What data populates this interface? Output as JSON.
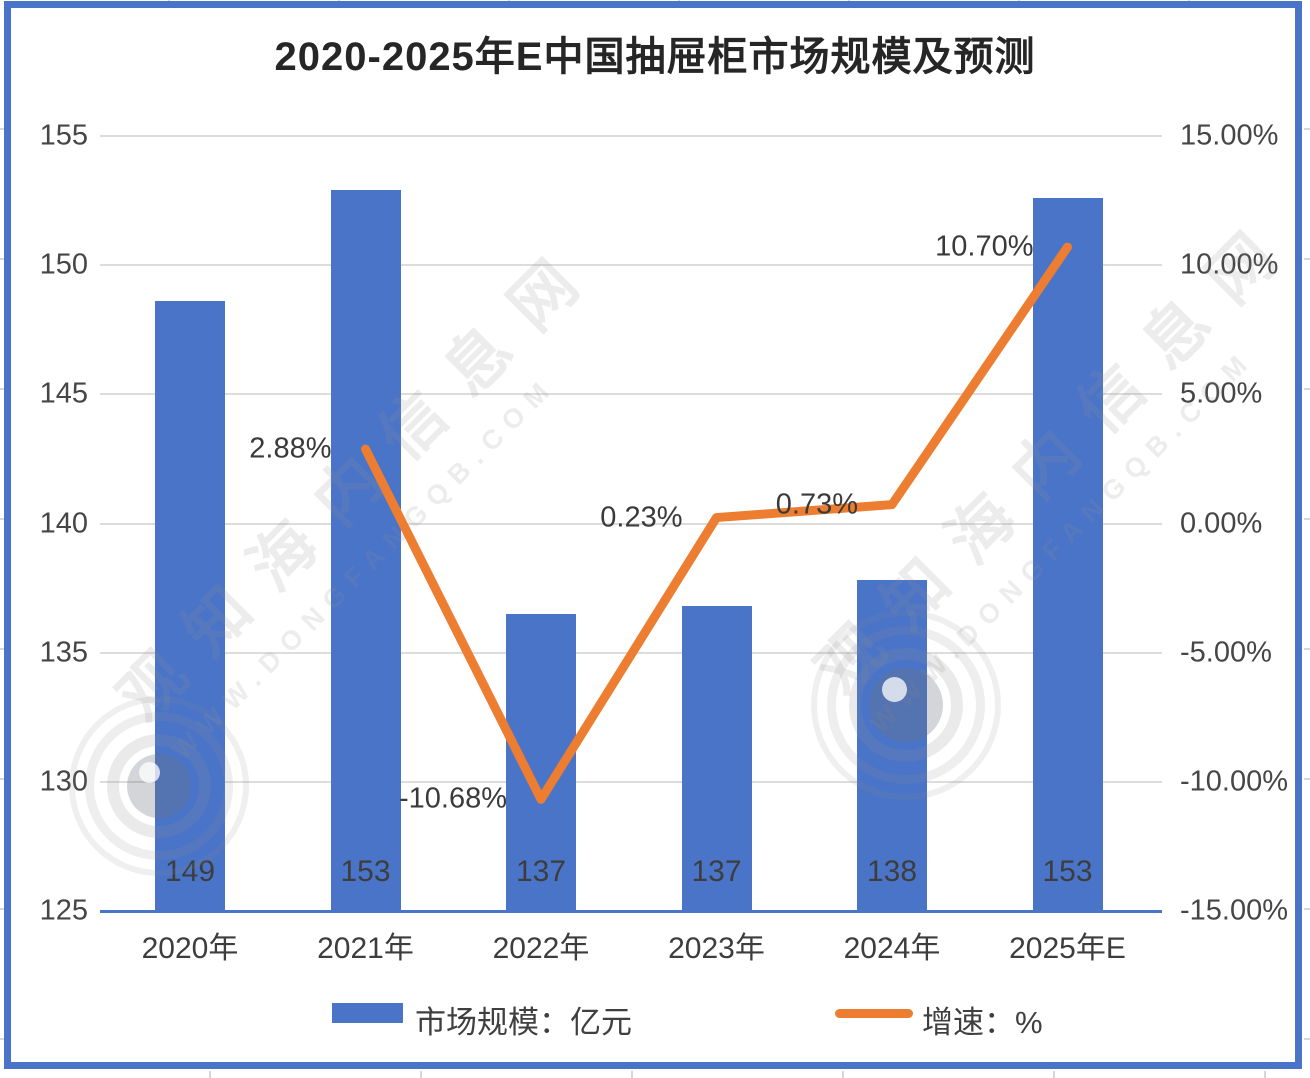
{
  "title": "2020-2025年E中国抽屉柜市场规模及预测",
  "watermark": {
    "brand": "观知海内信息网",
    "url": "WWW.DONGFANGQB.COM"
  },
  "chart_data": {
    "type": "bar+line",
    "title": "2020-2025年E中国抽屉柜市场规模及预测",
    "categories": [
      "2020年",
      "2021年",
      "2022年",
      "2023年",
      "2024年",
      "2025年E"
    ],
    "series": [
      {
        "name": "市场规模：亿元",
        "type": "bar",
        "axis": "left",
        "values": [
          149,
          153,
          137,
          137,
          138,
          153
        ],
        "values_precise": [
          148.6,
          152.9,
          136.5,
          136.8,
          137.8,
          152.6
        ],
        "labels": [
          "149",
          "153",
          "137",
          "137",
          "138",
          "153"
        ],
        "color": "#4A74C8"
      },
      {
        "name": "增速：%",
        "type": "line",
        "axis": "right",
        "start_index": 1,
        "values": [
          2.88,
          -10.68,
          0.23,
          0.73,
          10.7
        ],
        "labels": [
          "2.88%",
          "-10.68%",
          "0.23%",
          "0.73%",
          "10.70%"
        ],
        "color": "#ED7D31"
      }
    ],
    "left_axis": {
      "min": 125,
      "max": 155,
      "ticks": [
        "155",
        "150",
        "145",
        "140",
        "135",
        "130",
        "125"
      ]
    },
    "right_axis": {
      "min": -15,
      "max": 15,
      "ticks": [
        "15.00%",
        "10.00%",
        "5.00%",
        "0.00%",
        "-5.00%",
        "-10.00%",
        "-15.00%"
      ]
    },
    "grid": "horizontal",
    "legend_position": "bottom"
  },
  "colors": {
    "bar": "#4A74C8",
    "line": "#ED7D31",
    "frame": "#4A74C8",
    "gridline": "#DCDCDC",
    "text": "#3d3d3d",
    "title": "#262626"
  }
}
